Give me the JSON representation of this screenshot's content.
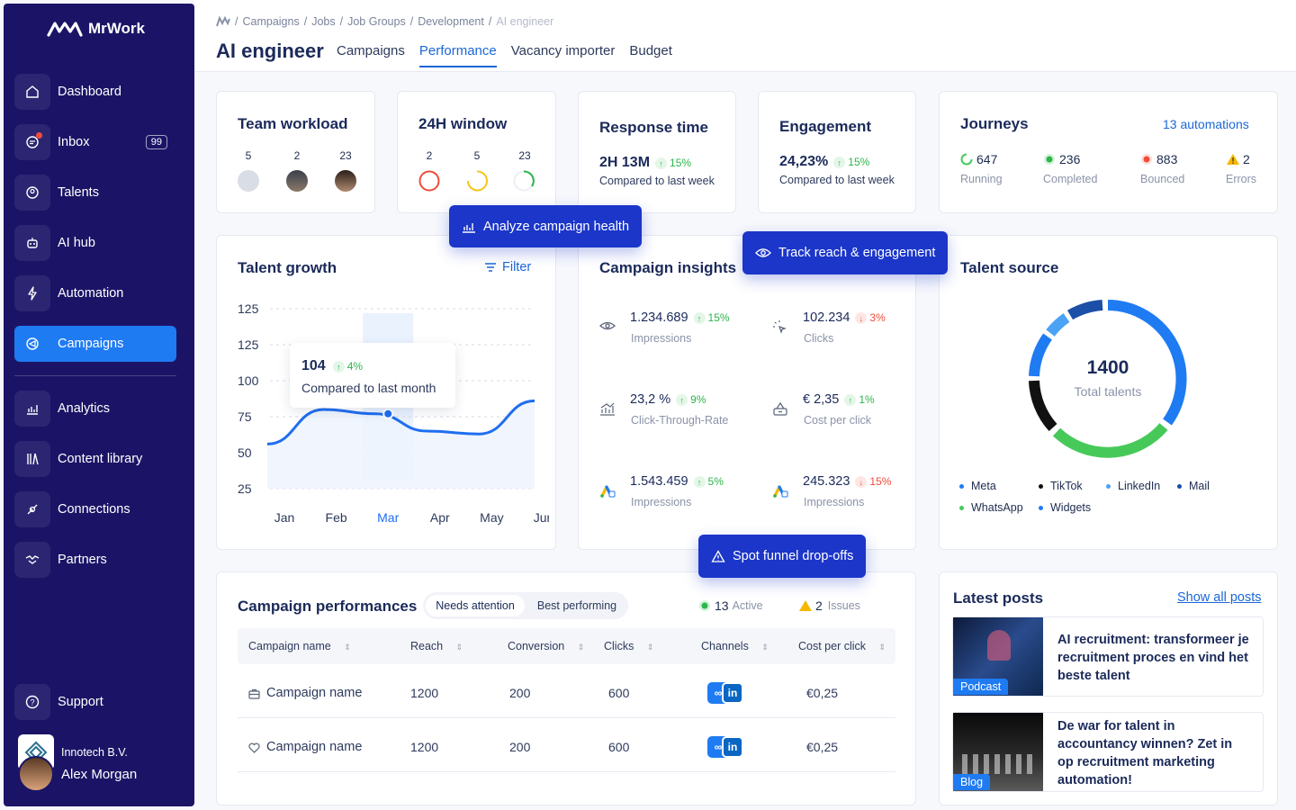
{
  "app": {
    "brand": "MrWork"
  },
  "sidebar": {
    "items": [
      {
        "label": "Dashboard",
        "icon": "home-icon"
      },
      {
        "label": "Inbox",
        "icon": "chat-icon",
        "badge": "99"
      },
      {
        "label": "Talents",
        "icon": "users-icon"
      },
      {
        "label": "AI hub",
        "icon": "robot-icon"
      },
      {
        "label": "Automation",
        "icon": "bolt-icon"
      },
      {
        "label": "Campaigns",
        "icon": "campaign-icon"
      },
      {
        "label": "Analytics",
        "icon": "analytics-icon"
      },
      {
        "label": "Content library",
        "icon": "library-icon"
      },
      {
        "label": "Connections",
        "icon": "plug-icon"
      },
      {
        "label": "Partners",
        "icon": "handshake-icon"
      }
    ],
    "support": "Support",
    "company": "Innotech B.V.",
    "user": "Alex Morgan"
  },
  "breadcrumb": [
    "Campaigns",
    "Jobs",
    "Job Groups",
    "Development",
    "AI engineer"
  ],
  "page": {
    "title": "AI engineer",
    "tabs": [
      "Campaigns",
      "Performance",
      "Vacancy importer",
      "Budget"
    ],
    "active_tab": "Performance"
  },
  "team_workload": {
    "title": "Team workload",
    "counts": [
      "5",
      "2",
      "23"
    ]
  },
  "window24": {
    "title": "24H window",
    "counts": [
      "2",
      "5",
      "23"
    ]
  },
  "response_time": {
    "title": "Response time",
    "value": "2H 13M",
    "delta": "15%",
    "note": "Compared to last week"
  },
  "engagement": {
    "title": "Engagement",
    "value": "24,23%",
    "delta": "15%",
    "note": "Compared to last week"
  },
  "journeys": {
    "title": "Journeys",
    "link": "13 automations",
    "stats": [
      {
        "value": "647",
        "label": "Running"
      },
      {
        "value": "236",
        "label": "Completed"
      },
      {
        "value": "883",
        "label": "Bounced"
      },
      {
        "value": "2",
        "label": "Errors"
      }
    ]
  },
  "pills": {
    "analyze": "Analyze campaign health",
    "track": "Track reach & engagement",
    "spot": "Spot funnel drop-offs"
  },
  "talent_growth": {
    "title": "Talent growth",
    "filter": "Filter",
    "tooltip": {
      "value": "104",
      "delta": "4%",
      "note": "Compared to last month"
    }
  },
  "chart_data": {
    "type": "line",
    "title": "Talent growth",
    "categories": [
      "Jan",
      "Feb",
      "Mar",
      "Apr",
      "May",
      "Jun"
    ],
    "y_ticks": [
      "125",
      "125",
      "100",
      "75",
      "50",
      "25"
    ],
    "series": [
      {
        "values": [
          56,
          80,
          77,
          65,
          63,
          86
        ]
      }
    ],
    "highlight": "Mar",
    "grid": true
  },
  "insights": {
    "title": "Campaign insights",
    "items": [
      {
        "value": "1.234.689",
        "delta": "15%",
        "dir": "up",
        "label": "Impressions",
        "icon": "eye-icon"
      },
      {
        "value": "102.234",
        "delta": "3%",
        "dir": "down",
        "label": "Clicks",
        "icon": "click-icon"
      },
      {
        "value": "23,2 %",
        "delta": "9%",
        "dir": "up",
        "label": "Click-Through-Rate",
        "icon": "ctr-icon"
      },
      {
        "value": "€ 2,35",
        "delta": "1%",
        "dir": "up",
        "label": "Cost per click",
        "icon": "cost-icon"
      },
      {
        "value": "1.543.459",
        "delta": "5%",
        "dir": "up",
        "label": "Impressions",
        "icon": "google-ads-icon"
      },
      {
        "value": "245.323",
        "delta": "15%",
        "dir": "down",
        "label": "Impressions",
        "icon": "google-ads-icon"
      }
    ]
  },
  "talent_source": {
    "title": "Talent source",
    "total": "1400",
    "total_label": "Total talents",
    "legend": [
      {
        "name": "Meta",
        "color": "#1f7bf2"
      },
      {
        "name": "TikTok",
        "color": "#111111"
      },
      {
        "name": "LinkedIn",
        "color": "#4aa3f5"
      },
      {
        "name": "Mail",
        "color": "#1b4fa8"
      },
      {
        "name": "WhatsApp",
        "color": "#47c95a"
      },
      {
        "name": "Widgets",
        "color": "#1f7bf2"
      }
    ]
  },
  "campaign_perf": {
    "title": "Campaign performances",
    "toggle": [
      "Needs attention",
      "Best performing"
    ],
    "active": "13",
    "active_label": "Active",
    "issues": "2",
    "issues_label": "Issues",
    "columns": [
      "Campaign name",
      "Reach",
      "Conversion",
      "Clicks",
      "Channels",
      "Cost per click"
    ],
    "rows": [
      {
        "name": "Campaign name",
        "reach": "1200",
        "conversion": "200",
        "clicks": "600",
        "cpc": "€0,25",
        "icon": "briefcase-icon"
      },
      {
        "name": "Campaign name",
        "reach": "1200",
        "conversion": "200",
        "clicks": "600",
        "cpc": "€0,25",
        "icon": "heart-icon"
      }
    ]
  },
  "latest_posts": {
    "title": "Latest posts",
    "link": "Show all posts",
    "posts": [
      {
        "tag": "Podcast",
        "title": "AI recruitment: transformeer je recruitment proces en vind het beste talent"
      },
      {
        "tag": "Blog",
        "title": "De war for talent in accountancy winnen? Zet in op recruitment marketing automation!"
      }
    ]
  }
}
